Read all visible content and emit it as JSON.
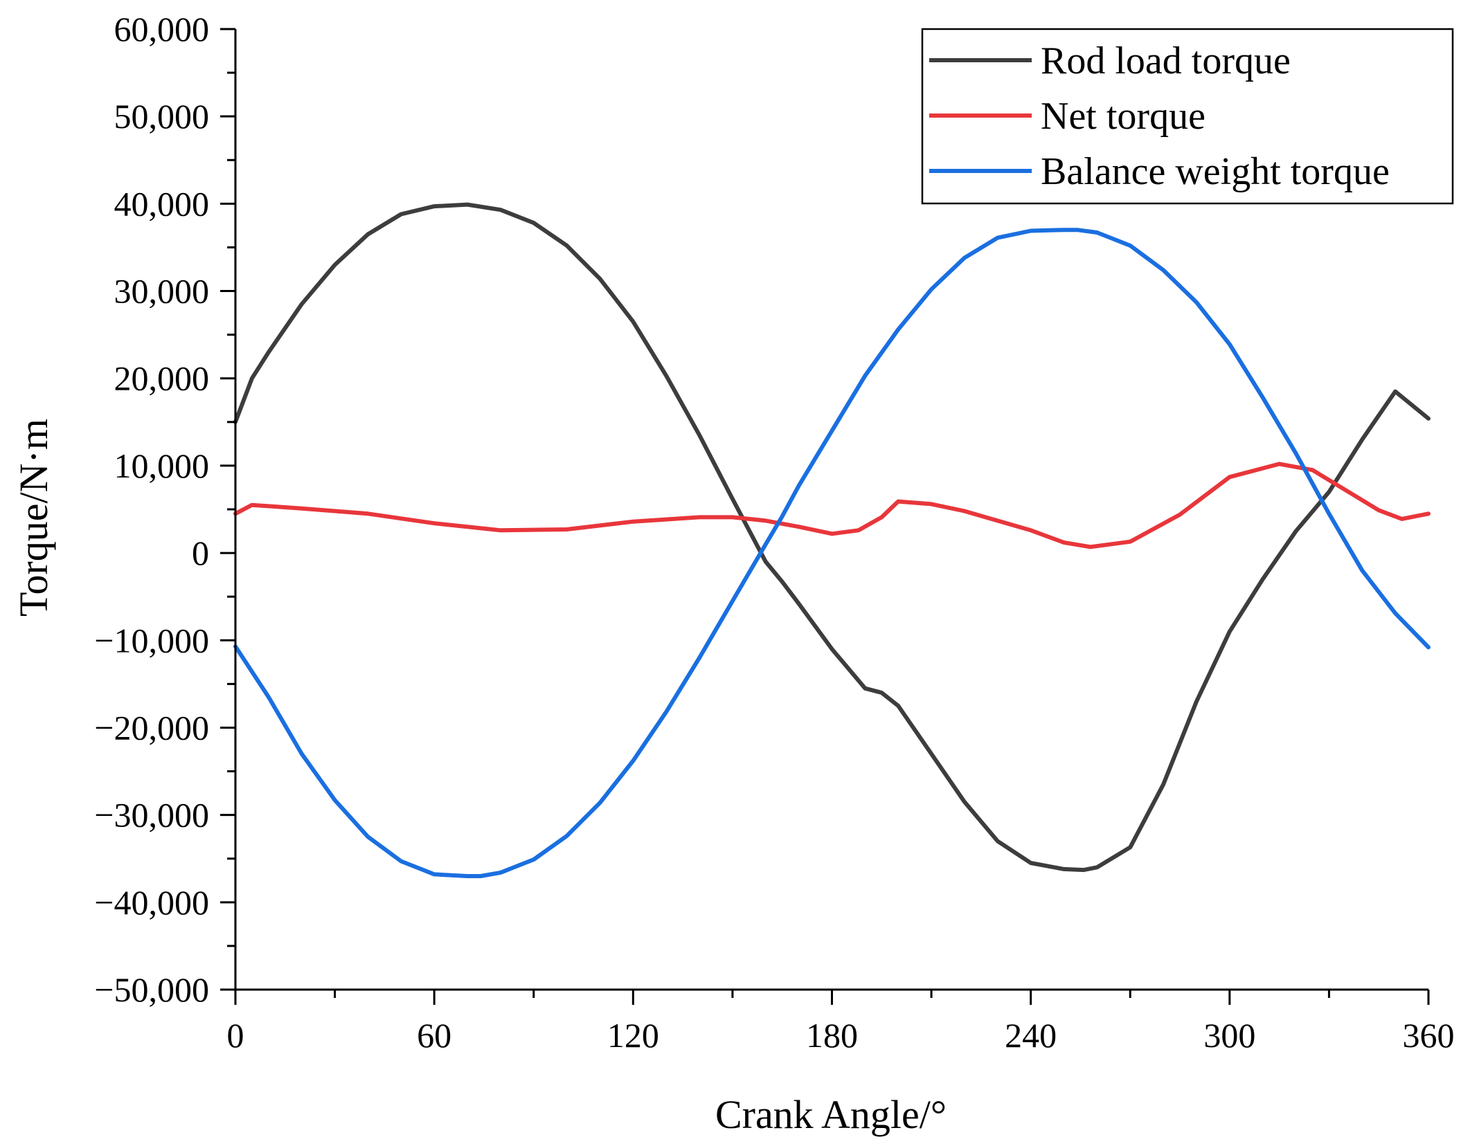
{
  "chart_data": {
    "type": "line",
    "title": "",
    "xlabel": "Crank Angle/°",
    "ylabel": "Torque/N·m",
    "xlim": [
      0,
      360
    ],
    "ylim": [
      -50000,
      60000
    ],
    "x_ticks": [
      0,
      60,
      120,
      180,
      240,
      300,
      360
    ],
    "x_tick_labels": [
      "0",
      "60",
      "120",
      "180",
      "240",
      "300",
      "360"
    ],
    "y_ticks": [
      60000,
      50000,
      40000,
      30000,
      20000,
      10000,
      0,
      -10000,
      -20000,
      -30000,
      -40000,
      -50000
    ],
    "y_tick_labels": [
      "60,000",
      "50,000",
      "40,000",
      "30,000",
      "20,000",
      "10,000",
      "0",
      "−10,000",
      "−20,000",
      "−30,000",
      "−40,000",
      "−50,000"
    ],
    "grid": false,
    "legend_position": "top-right",
    "series": [
      {
        "name": "Rod load torque",
        "color": "#3d3d3d",
        "x": [
          0,
          5,
          10,
          20,
          30,
          40,
          50,
          60,
          70,
          80,
          90,
          100,
          110,
          120,
          130,
          140,
          150,
          160,
          165,
          170,
          180,
          190,
          195,
          200,
          210,
          220,
          230,
          240,
          250,
          256,
          260,
          270,
          280,
          290,
          300,
          310,
          320,
          330,
          340,
          350,
          360
        ],
        "y": [
          15000,
          20000,
          23000,
          28500,
          33000,
          36500,
          38800,
          39700,
          39900,
          39300,
          37800,
          35200,
          31400,
          26500,
          20300,
          13500,
          6200,
          -1000,
          -3300,
          -5800,
          -11000,
          -15500,
          -16000,
          -17500,
          -23000,
          -28500,
          -33000,
          -35500,
          -36200,
          -36300,
          -36000,
          -33700,
          -26500,
          -17000,
          -9000,
          -3000,
          2500,
          7000,
          13000,
          18500,
          15400
        ]
      },
      {
        "name": "Net torque",
        "color": "#e8363b",
        "x": [
          0,
          5,
          20,
          40,
          60,
          80,
          100,
          120,
          140,
          150,
          160,
          170,
          180,
          188,
          195,
          200,
          210,
          220,
          240,
          250,
          258,
          270,
          285,
          300,
          315,
          325,
          335,
          345,
          352,
          360
        ],
        "y": [
          4500,
          5500,
          5100,
          4500,
          3400,
          2600,
          2700,
          3600,
          4100,
          4100,
          3700,
          3000,
          2200,
          2600,
          4100,
          5900,
          5600,
          4800,
          2600,
          1200,
          700,
          1300,
          4400,
          8700,
          10200,
          9500,
          7200,
          4900,
          3900,
          4500
        ]
      },
      {
        "name": "Balance weight torque",
        "color": "#1a6fe0",
        "x": [
          0,
          10,
          20,
          30,
          40,
          50,
          60,
          70,
          74,
          80,
          90,
          100,
          110,
          120,
          130,
          140,
          150,
          160,
          165,
          170,
          180,
          190,
          200,
          210,
          220,
          230,
          240,
          250,
          254,
          260,
          270,
          280,
          290,
          300,
          310,
          320,
          330,
          340,
          350,
          360
        ],
        "y": [
          -10700,
          -16500,
          -23000,
          -28300,
          -32500,
          -35300,
          -36800,
          -37000,
          -37000,
          -36600,
          -35100,
          -32400,
          -28600,
          -23800,
          -18200,
          -12000,
          -5500,
          1000,
          4200,
          7700,
          14000,
          20300,
          25600,
          30200,
          33800,
          36100,
          36900,
          37000,
          37000,
          36700,
          35200,
          32400,
          28700,
          23900,
          17800,
          11400,
          4500,
          -2000,
          -6900,
          -10800
        ]
      }
    ]
  }
}
